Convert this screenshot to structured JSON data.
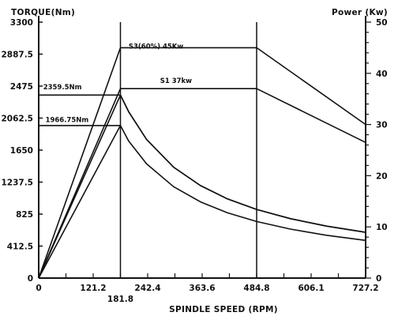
{
  "colors": {
    "ink": "#111111",
    "background": "#ffffff"
  },
  "chart_data": {
    "type": "line",
    "xlabel": "SPINDLE SPEED (RPM)",
    "ylabel_left": "TORQUE(Nm)",
    "ylabel_right": "Power (Kw)",
    "xlim": [
      0,
      727.2
    ],
    "ylim_left": [
      0,
      3300
    ],
    "ylim_right": [
      0,
      50
    ],
    "x_ticks": [
      "0",
      "121.2",
      "242.4",
      "363.6",
      "484.8",
      "606.1",
      "727.2"
    ],
    "x_tick_values": [
      0,
      121.2,
      242.4,
      363.6,
      484.8,
      606.1,
      727.2
    ],
    "x_extra_tick": {
      "label": "181.8",
      "value": 181.8
    },
    "y_left_ticks": [
      "0",
      "412.5",
      "825",
      "1237.5",
      "1650",
      "2062.5",
      "2475",
      "2887.5",
      "3300"
    ],
    "y_left_tick_values": [
      0,
      412.5,
      825,
      1237.5,
      1650,
      2062.5,
      2475,
      2887.5,
      3300
    ],
    "y_right_ticks": [
      "0",
      "10",
      "20",
      "30",
      "40",
      "50"
    ],
    "y_right_tick_values": [
      0,
      10,
      20,
      30,
      40,
      50
    ],
    "vertical_lines_x": [
      181.8,
      484.8
    ],
    "grid": false,
    "annotations": [
      {
        "text": "S3(60%) 45Kw",
        "x": 200,
        "y": 2960
      },
      {
        "text": "S1 37kw",
        "x": 270,
        "y": 2515
      },
      {
        "text": "2359.5Nm",
        "x": 10,
        "y": 2435
      },
      {
        "text": "1966.75Nm",
        "x": 15,
        "y": 2010
      }
    ],
    "series": [
      {
        "axis": "right",
        "points": [
          [
            0,
            0
          ],
          [
            181.8,
            45
          ],
          [
            484.8,
            45
          ],
          [
            727.2,
            30
          ]
        ]
      },
      {
        "axis": "right",
        "points": [
          [
            0,
            0
          ],
          [
            181.8,
            37
          ],
          [
            484.8,
            37
          ],
          [
            727.2,
            26.5
          ]
        ]
      },
      {
        "axis": "left",
        "points": [
          [
            0,
            2359.5
          ],
          [
            181.8,
            2359.5
          ],
          [
            200,
            2145
          ],
          [
            240,
            1787
          ],
          [
            300,
            1430
          ],
          [
            360,
            1192
          ],
          [
            420,
            1021
          ],
          [
            484.8,
            885
          ],
          [
            560,
            766
          ],
          [
            640,
            670
          ],
          [
            727.2,
            590
          ]
        ]
      },
      {
        "axis": "left",
        "points": [
          [
            0,
            1966.75
          ],
          [
            181.8,
            1966.75
          ],
          [
            200,
            1767
          ],
          [
            240,
            1473
          ],
          [
            300,
            1178
          ],
          [
            360,
            982
          ],
          [
            420,
            841
          ],
          [
            484.8,
            729
          ],
          [
            560,
            631
          ],
          [
            640,
            552
          ],
          [
            727.2,
            486
          ]
        ]
      },
      {
        "axis": "left",
        "points": [
          [
            0,
            0
          ],
          [
            181.8,
            2359.5
          ],
          [
            200,
            2145
          ],
          [
            240,
            1787
          ],
          [
            300,
            1430
          ],
          [
            360,
            1192
          ],
          [
            420,
            1021
          ],
          [
            484.8,
            885
          ],
          [
            560,
            766
          ],
          [
            640,
            670
          ],
          [
            727.2,
            590
          ]
        ]
      },
      {
        "axis": "left",
        "points": [
          [
            0,
            0
          ],
          [
            181.8,
            1966.75
          ]
        ]
      }
    ]
  }
}
